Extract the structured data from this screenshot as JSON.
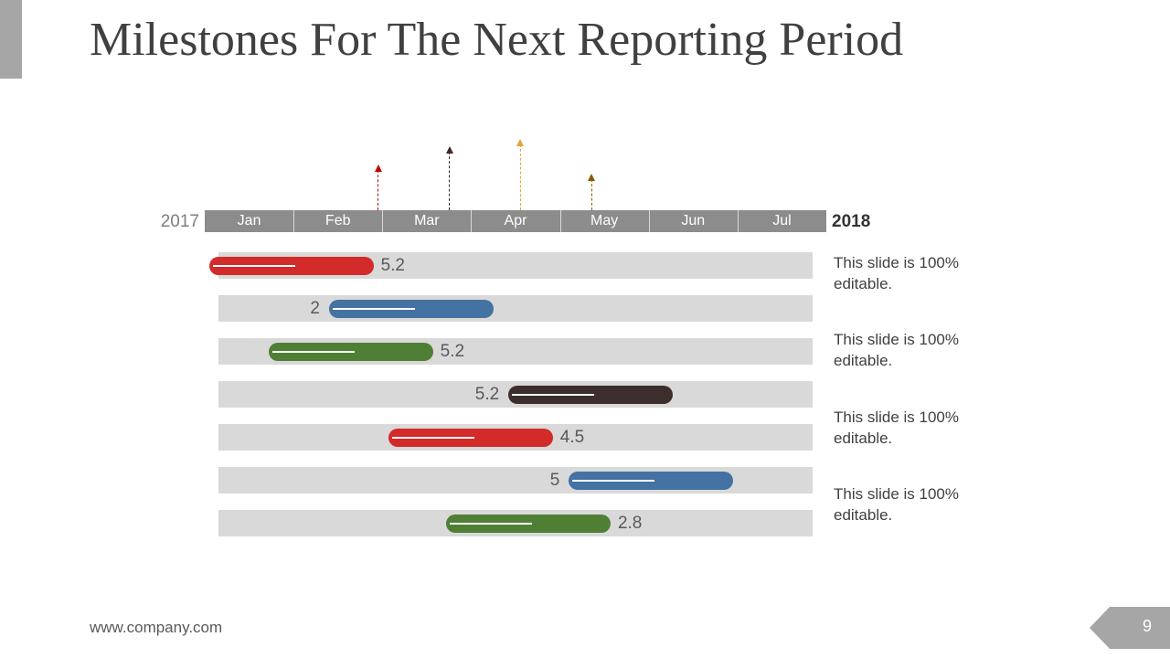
{
  "slide": {
    "title": "Milestones For The Next Reporting Period",
    "footer_url": "www.company.com",
    "page_number": "9"
  },
  "timeline": {
    "year_start": "2017",
    "year_end": "2018",
    "months": [
      "Jan",
      "Feb",
      "Mar",
      "Apr",
      "May",
      "Jun",
      "Jul"
    ],
    "milestones": [
      {
        "month_index": 1.95,
        "height_level": 0.55,
        "color": "#c00000"
      },
      {
        "month_index": 2.75,
        "height_level": 0.8,
        "color": "#3b2a26"
      },
      {
        "month_index": 3.55,
        "height_level": 0.9,
        "color": "#e6a23c"
      },
      {
        "month_index": 4.35,
        "height_level": 0.42,
        "color": "#8b5a00"
      }
    ]
  },
  "bars": [
    {
      "value_label": "5.2",
      "start_month": 0.05,
      "end_month": 1.9,
      "progress": 0.5,
      "label_side": "right",
      "color": "#d32a2a"
    },
    {
      "value_label": "2",
      "start_month": 1.4,
      "end_month": 3.25,
      "progress": 0.5,
      "label_side": "left",
      "color": "#4472a2"
    },
    {
      "value_label": "5.2",
      "start_month": 0.72,
      "end_month": 2.57,
      "progress": 0.5,
      "label_side": "right",
      "color": "#4f7f35"
    },
    {
      "value_label": "5.2",
      "start_month": 3.42,
      "end_month": 5.27,
      "progress": 0.5,
      "label_side": "left",
      "color": "#3b2e2c"
    },
    {
      "value_label": "4.5",
      "start_month": 2.07,
      "end_month": 3.92,
      "progress": 0.5,
      "label_side": "right",
      "color": "#d32a2a"
    },
    {
      "value_label": "5",
      "start_month": 4.1,
      "end_month": 5.95,
      "progress": 0.5,
      "label_side": "left",
      "color": "#4472a2"
    },
    {
      "value_label": "2.8",
      "start_month": 2.72,
      "end_month": 4.57,
      "progress": 0.5,
      "label_side": "right",
      "color": "#4f7f35"
    }
  ],
  "notes": [
    "This slide is 100% editable.",
    "This slide is 100% editable.",
    "This slide is 100% editable.",
    "This slide is 100% editable."
  ]
}
